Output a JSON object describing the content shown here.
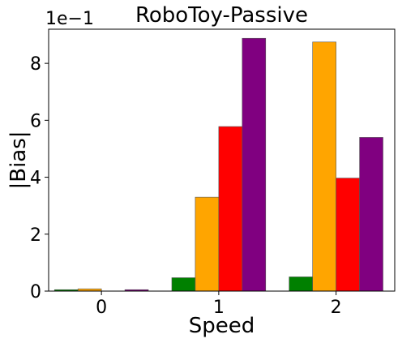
{
  "chart_data": {
    "type": "bar",
    "title": "RoboToy-Passive",
    "xlabel": "Speed",
    "ylabel": "|Bias|",
    "y_offset_label": "1e−1",
    "categories": [
      "0",
      "1",
      "2"
    ],
    "ylim": [
      0,
      9.2
    ],
    "yticks": [
      0,
      2,
      4,
      6,
      8
    ],
    "grid": false,
    "series": [
      {
        "color": "#008000",
        "values": [
          0.05,
          0.47,
          0.5
        ]
      },
      {
        "color": "#FFA500",
        "values": [
          0.08,
          3.3,
          8.75
        ]
      },
      {
        "color": "#FF0000",
        "values": [
          0.0,
          5.78,
          3.97
        ]
      },
      {
        "color": "#800080",
        "values": [
          0.05,
          8.88,
          5.4
        ]
      }
    ]
  }
}
